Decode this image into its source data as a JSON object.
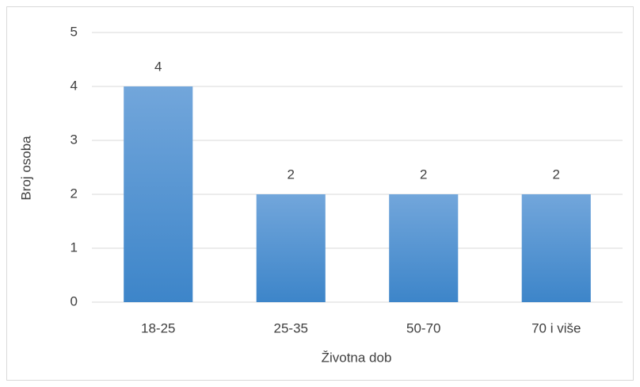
{
  "chart_data": {
    "type": "bar",
    "x_label": "Životna dob",
    "y_label": "Broj osoba",
    "categories": [
      "18-25",
      "25-35",
      "50-70",
      "70 i više"
    ],
    "values": [
      4,
      2,
      2,
      2
    ],
    "color": "#5b9bd5",
    "ylim": [
      0,
      5
    ],
    "yticks": [
      0,
      1,
      2,
      3,
      4,
      5
    ],
    "grid": true
  }
}
